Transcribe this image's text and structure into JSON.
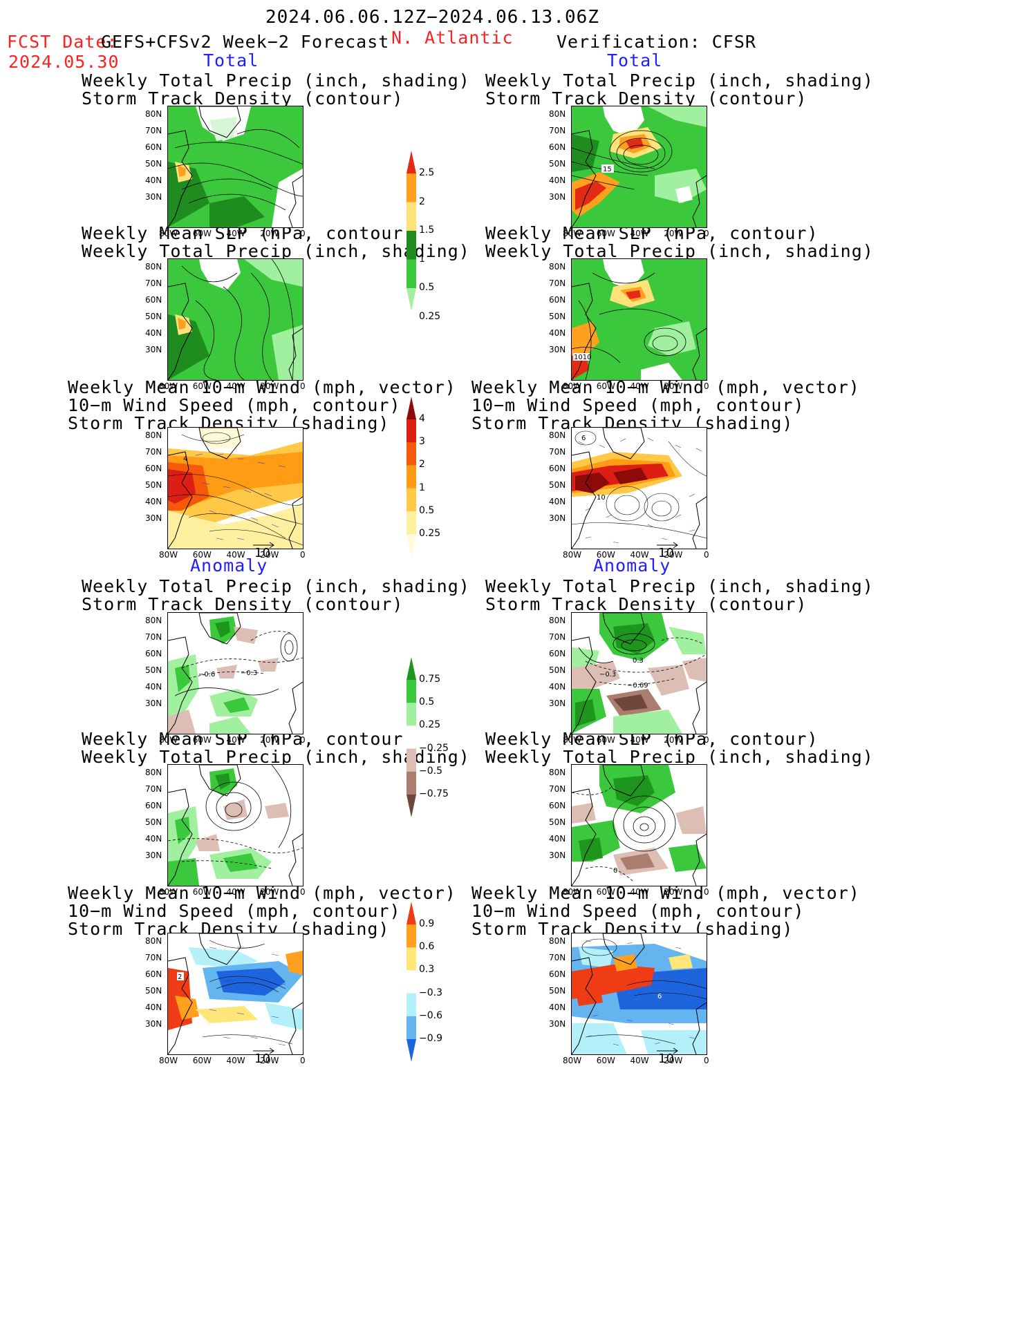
{
  "header": {
    "date_range": "2024.06.06.12Z−2024.06.13.06Z",
    "fcst_label": "FCST Date:",
    "fcst_date": "2024.05.30",
    "model": "GEFS+CFSv2 Week−2 Forecast",
    "region": "N. Atlantic",
    "verification": "Verification: CFSR"
  },
  "sections": {
    "total": "Total",
    "anomaly": "Anomaly"
  },
  "titles": {
    "precip_track": [
      "Weekly Total Precip (inch, shading)",
      "Storm Track Density (contour)"
    ],
    "slp_precip": [
      "Weekly Mean SLP (hPa, contour)",
      "Weekly Total Precip (inch, shading)"
    ],
    "wind_track": [
      "Weekly Mean 10−m Wind (mph, vector)",
      "10−m Wind Speed (mph, contour)",
      "Storm Track Density (shading)"
    ]
  },
  "axes": {
    "lat": [
      "80N",
      "70N",
      "60N",
      "50N",
      "40N",
      "30N"
    ],
    "lon": [
      "80W",
      "60W",
      "40W",
      "20W",
      "0"
    ]
  },
  "vector_ref": "10",
  "colorbars": {
    "precip_total": {
      "labels": [
        "2.5",
        "2",
        "1.5",
        "1",
        "0.5",
        "0.25"
      ],
      "colors": [
        "#e32a14",
        "#ffa01e",
        "#ffe27a",
        "#1e8c1e",
        "#3cc83c",
        "#a0f0a0"
      ]
    },
    "track_total": {
      "labels": [
        "4",
        "3",
        "2",
        "1",
        "0.5",
        "0.25"
      ],
      "colors": [
        "#8c0a0a",
        "#dc1e14",
        "#f55a0a",
        "#ff9b14",
        "#ffc846",
        "#fff0a0",
        "#fffad7"
      ]
    },
    "precip_anom": {
      "labels": [
        "0.75",
        "0.5",
        "0.25",
        "−0.25",
        "−0.5",
        "−0.75"
      ],
      "colors": [
        "#1e961e",
        "#3cc83c",
        "#a0f0a0",
        "#ffffff",
        "#dcbeb4",
        "#aa7d6e",
        "#6e463c"
      ]
    },
    "track_anom": {
      "labels": [
        "0.9",
        "0.6",
        "0.3",
        "−0.3",
        "−0.6",
        "−0.9"
      ],
      "colors": [
        "#f03c14",
        "#ffa01e",
        "#ffe678",
        "#ffffff",
        "#b4f0fa",
        "#64b4f0",
        "#1e64dc"
      ]
    }
  },
  "map_labels": {
    "r1_c2_a": "15",
    "r2_c2_a": "1010",
    "r3_c1_a": "4",
    "r3_c2_a": "6",
    "r3_c2_b": "10",
    "r4_c1_a": "−0.6",
    "r4_c1_b": "−0.3",
    "r4_c2_a": "0.3",
    "r4_c2_b": "−0.3",
    "r4_c2_c": "−0.69",
    "r5_c2_a": "0",
    "r6_c1_a": "2",
    "r6_c2_a": "6"
  }
}
